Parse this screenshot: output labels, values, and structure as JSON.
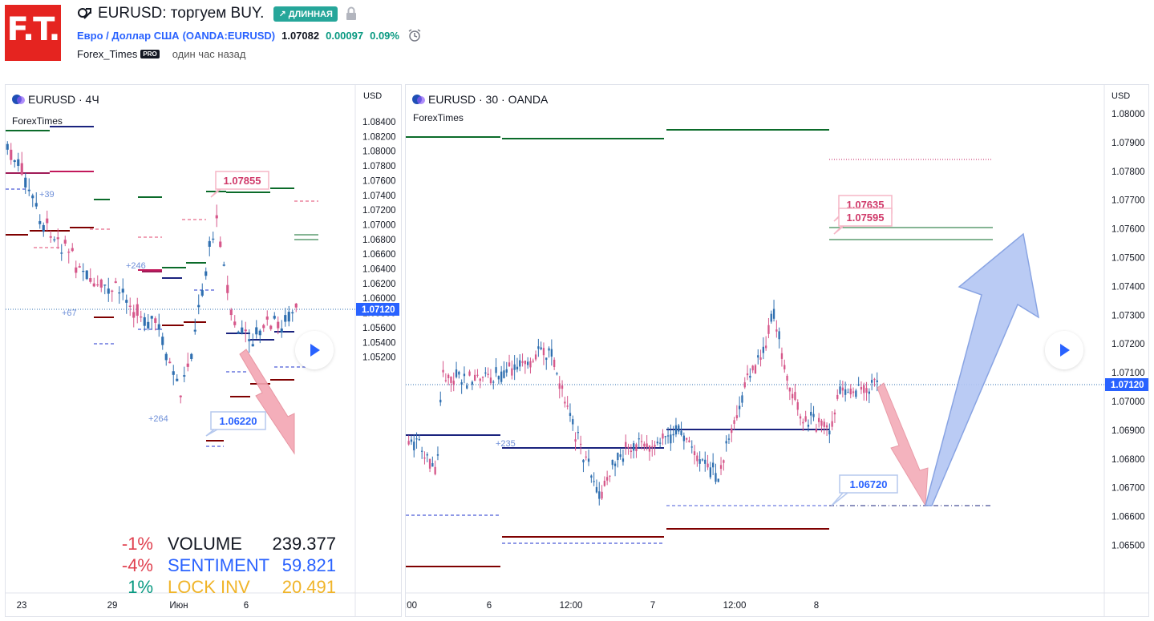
{
  "header": {
    "logo_text": "F.T.",
    "idea_title": "EURUSD: торгуем BUY.",
    "direction_badge": "↗ ДЛИННАЯ",
    "symbol_desc": "Евро / Доллар США",
    "symbol_code": "(OANDA:EURUSD)",
    "last_price": "1.07082",
    "change_abs": "0.00097",
    "change_pct": "0.09%",
    "author": "Forex_Times",
    "author_badge": "PRO",
    "published": "один час назад"
  },
  "colors": {
    "brand_red": "#e52420",
    "up": "#26a69a",
    "down": "#e0517f",
    "blue_line": "#2962ff",
    "text": "#131722"
  },
  "left_chart": {
    "symbol_label": "EURUSD · 4Ч",
    "watermark": "ForexTimes",
    "axis_unit": "USD",
    "price_ticks": [
      "1.08400",
      "1.08200",
      "1.08000",
      "1.07800",
      "1.07600",
      "1.07400",
      "1.07200",
      "1.07000",
      "1.06800",
      "1.06600",
      "1.06400",
      "1.06200",
      "1.06000",
      "1.05800",
      "1.05600",
      "1.05400",
      "1.05200"
    ],
    "current_price_tag": "1.07120",
    "time_ticks": [
      "23",
      "29",
      "Июн",
      "6"
    ],
    "callout_high": "1.07855",
    "callout_low": "1.06220",
    "small_labels": [
      "+39",
      "+246",
      "+67",
      "+264"
    ],
    "stats": [
      {
        "pct": "-1%",
        "name": "VOLUME",
        "value": "239.377",
        "pct_color": "#e0404f",
        "name_color": "#131722"
      },
      {
        "pct": "-4%",
        "name": "SENTIMENT",
        "value": "59.821",
        "pct_color": "#e0404f",
        "name_color": "#2962ff"
      },
      {
        "pct": "1%",
        "name": "LOCK INV",
        "value": "20.491",
        "pct_color": "#089981",
        "name_color": "#f0b429"
      }
    ]
  },
  "right_chart": {
    "symbol_label": "EURUSD · 30 · OANDA",
    "watermark": "ForexTimes",
    "axis_unit": "USD",
    "price_ticks": [
      "1.08000",
      "1.07900",
      "1.07800",
      "1.07700",
      "1.07600",
      "1.07500",
      "1.07400",
      "1.07300",
      "1.07200",
      "1.07100",
      "1.07000",
      "1.06900",
      "1.06800",
      "1.06700",
      "1.06600",
      "1.06500"
    ],
    "current_price_tag": "1.07120",
    "time_ticks": [
      ":00",
      "6",
      "12:00",
      "7",
      "12:00",
      "8"
    ],
    "callout_a": "1.07635",
    "callout_b": "1.07595",
    "callout_low": "1.06720",
    "small_label": "+235"
  }
}
